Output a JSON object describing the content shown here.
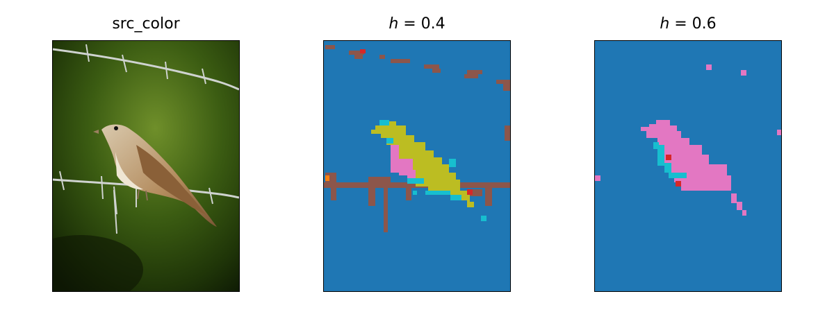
{
  "panels": [
    {
      "title": "src_color"
    },
    {
      "title_var": "h",
      "title_rest": " = 0.4"
    },
    {
      "title_var": "h",
      "title_rest": " = 0.6"
    }
  ],
  "colors": {
    "background_segment": "#1f77b4",
    "brown": "#8c564b",
    "olive": "#bcbd22",
    "pink": "#e377c2",
    "cyan": "#17becf",
    "red": "#d62728",
    "orange": "#ff7f0e"
  }
}
